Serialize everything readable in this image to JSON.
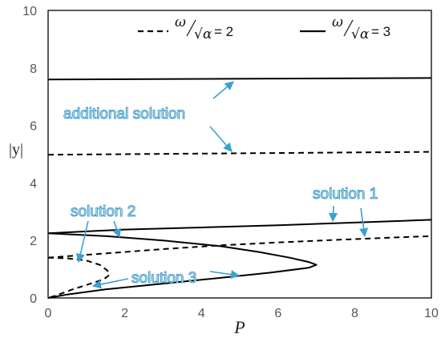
{
  "chart_data": {
    "type": "line",
    "xlabel": "P",
    "ylabel": "|y|",
    "xlim": [
      0,
      10
    ],
    "ylim": [
      0,
      10
    ],
    "xticks": [
      "0",
      "2",
      "4",
      "6",
      "8",
      "10"
    ],
    "yticks": [
      "0",
      "2",
      "4",
      "6",
      "8",
      "10"
    ],
    "grid": false,
    "legend_position": "top",
    "legend": [
      {
        "style": "dashed",
        "omega": "ω",
        "sqrt_alpha": "√α",
        "equals": "= 2"
      },
      {
        "style": "solid",
        "omega": "ω",
        "sqrt_alpha": "√α",
        "equals": "= 3"
      }
    ],
    "series": [
      {
        "style": "solid",
        "x": [
          0,
          10
        ],
        "y": [
          7.6,
          7.65
        ]
      },
      {
        "style": "dashed",
        "x": [
          0,
          10
        ],
        "y": [
          4.98,
          5.08
        ]
      },
      {
        "style": "solid",
        "x": [
          0,
          2,
          4,
          6,
          8,
          10
        ],
        "y": [
          2.25,
          2.38,
          2.45,
          2.53,
          2.62,
          2.72
        ]
      },
      {
        "style": "solid",
        "x": [
          0,
          1.5,
          3,
          4.5,
          5.5,
          6.3,
          6.8,
          7.0,
          6.8,
          5.8,
          4.5,
          3,
          1.5,
          0.5,
          0
        ],
        "y": [
          2.25,
          2.15,
          2.0,
          1.8,
          1.6,
          1.4,
          1.25,
          1.15,
          1.05,
          0.88,
          0.7,
          0.5,
          0.3,
          0.12,
          0
        ]
      },
      {
        "style": "dashed",
        "x": [
          0,
          1.5,
          3,
          4.5,
          6,
          7.5,
          9,
          10
        ],
        "y": [
          1.4,
          1.55,
          1.7,
          1.83,
          1.93,
          2.02,
          2.1,
          2.15
        ]
      },
      {
        "style": "dashed",
        "x": [
          0,
          0.5,
          1.0,
          1.35,
          1.55,
          1.6,
          1.45,
          1.0,
          0.6,
          0.2,
          0
        ],
        "y": [
          1.4,
          1.38,
          1.3,
          1.15,
          0.95,
          0.8,
          0.65,
          0.45,
          0.28,
          0.08,
          0
        ]
      }
    ],
    "annotations": [
      {
        "text": "additional solution"
      },
      {
        "text": "solution 1"
      },
      {
        "text": "solution 2"
      },
      {
        "text": "solution 3"
      }
    ]
  }
}
